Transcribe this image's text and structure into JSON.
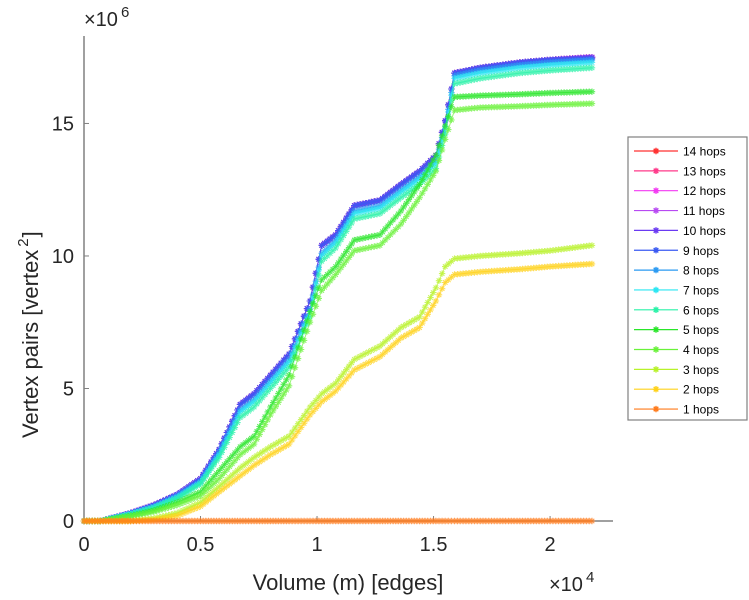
{
  "chart_data": {
    "type": "line",
    "title": "",
    "xlabel": "Volume (m) [edges]",
    "ylabel": "Vertex pairs [vertex",
    "ylabel_superscript": "2",
    "ylabel_close": "]",
    "x_multiplier": "×10",
    "x_multiplier_exp": "4",
    "y_multiplier": "×10",
    "y_multiplier_exp": "6",
    "xlim": [
      0,
      2.27
    ],
    "ylim": [
      0,
      18.3
    ],
    "x_ticks": [
      0,
      0.5,
      1,
      1.5,
      2
    ],
    "x_tick_labels": [
      "0",
      "0.5",
      "1",
      "1.5",
      "2"
    ],
    "y_ticks": [
      0,
      5,
      10,
      15
    ],
    "y_tick_labels": [
      "0",
      "5",
      "10",
      "15"
    ],
    "grid": false,
    "legend_position": "right-outside",
    "x": [
      0,
      0.07,
      0.2,
      0.3,
      0.4,
      0.5,
      0.58,
      0.67,
      0.73,
      0.8,
      0.88,
      0.97,
      1.02,
      1.08,
      1.16,
      1.27,
      1.36,
      1.44,
      1.51,
      1.55,
      1.59,
      1.7,
      1.87,
      2.0,
      2.18
    ],
    "series": [
      {
        "name": "14 hops",
        "color": "#ff3030",
        "values": [
          0,
          0,
          0.3,
          0.6,
          1.0,
          1.6,
          2.7,
          4.4,
          4.8,
          5.5,
          6.3,
          8.3,
          10.4,
          10.8,
          11.9,
          12.1,
          12.7,
          13.2,
          13.8,
          15.1,
          16.9,
          17.1,
          17.3,
          17.4,
          17.5
        ]
      },
      {
        "name": "13 hops",
        "color": "#ff3a8a",
        "values": [
          0,
          0,
          0.3,
          0.6,
          1.0,
          1.6,
          2.7,
          4.4,
          4.8,
          5.5,
          6.3,
          8.3,
          10.4,
          10.8,
          11.9,
          12.1,
          12.7,
          13.2,
          13.8,
          15.1,
          16.9,
          17.1,
          17.3,
          17.4,
          17.5
        ]
      },
      {
        "name": "12 hops",
        "color": "#f23af2",
        "values": [
          0,
          0,
          0.3,
          0.6,
          1.0,
          1.6,
          2.7,
          4.4,
          4.8,
          5.5,
          6.3,
          8.3,
          10.4,
          10.8,
          11.9,
          12.1,
          12.7,
          13.2,
          13.8,
          15.1,
          16.9,
          17.1,
          17.3,
          17.4,
          17.5
        ]
      },
      {
        "name": "11 hops",
        "color": "#b84af2",
        "values": [
          0,
          0,
          0.3,
          0.6,
          1.0,
          1.6,
          2.7,
          4.4,
          4.8,
          5.5,
          6.3,
          8.3,
          10.4,
          10.8,
          11.9,
          12.1,
          12.7,
          13.2,
          13.8,
          15.1,
          16.9,
          17.1,
          17.3,
          17.4,
          17.5
        ]
      },
      {
        "name": "10 hops",
        "color": "#6a3af2",
        "values": [
          0,
          0,
          0.3,
          0.6,
          1.0,
          1.6,
          2.7,
          4.4,
          4.8,
          5.5,
          6.3,
          8.3,
          10.4,
          10.8,
          11.9,
          12.1,
          12.7,
          13.2,
          13.8,
          15.1,
          16.9,
          17.1,
          17.3,
          17.4,
          17.5
        ]
      },
      {
        "name": "9 hops",
        "color": "#3a5af2",
        "values": [
          0,
          0,
          0.3,
          0.6,
          1.0,
          1.6,
          2.7,
          4.4,
          4.8,
          5.5,
          6.3,
          8.3,
          10.4,
          10.8,
          11.9,
          12.1,
          12.7,
          13.2,
          13.8,
          15.1,
          16.9,
          17.1,
          17.3,
          17.4,
          17.45
        ]
      },
      {
        "name": "8 hops",
        "color": "#2a9af2",
        "values": [
          0,
          0,
          0.28,
          0.55,
          0.95,
          1.5,
          2.6,
          4.2,
          4.6,
          5.3,
          6.1,
          8.0,
          10.1,
          10.6,
          11.7,
          11.9,
          12.5,
          13.0,
          13.6,
          14.9,
          16.8,
          17.0,
          17.2,
          17.3,
          17.4
        ]
      },
      {
        "name": "7 hops",
        "color": "#2ae6f2",
        "values": [
          0,
          0,
          0.27,
          0.52,
          0.9,
          1.45,
          2.5,
          4.1,
          4.5,
          5.2,
          6.0,
          7.9,
          10.0,
          10.5,
          11.6,
          11.8,
          12.4,
          12.9,
          13.5,
          14.8,
          16.7,
          16.9,
          17.1,
          17.2,
          17.3
        ]
      },
      {
        "name": "6 hops",
        "color": "#2af2a8",
        "values": [
          0,
          0,
          0.25,
          0.5,
          0.85,
          1.4,
          2.4,
          3.9,
          4.3,
          5.0,
          5.8,
          7.7,
          9.8,
          10.3,
          11.4,
          11.6,
          12.2,
          12.7,
          13.3,
          14.6,
          16.5,
          16.7,
          16.9,
          17.0,
          17.1
        ]
      },
      {
        "name": "5 hops",
        "color": "#2ae62a",
        "values": [
          0,
          0,
          0.2,
          0.4,
          0.7,
          1.1,
          1.9,
          2.8,
          3.2,
          4.3,
          5.5,
          7.9,
          9.1,
          9.6,
          10.6,
          10.8,
          11.7,
          12.7,
          13.8,
          14.9,
          16.0,
          16.05,
          16.1,
          16.15,
          16.2
        ]
      },
      {
        "name": "4 hops",
        "color": "#6af23a",
        "values": [
          0,
          0,
          0.18,
          0.35,
          0.6,
          0.95,
          1.6,
          2.5,
          2.9,
          4.0,
          5.1,
          7.5,
          8.7,
          9.3,
          10.2,
          10.4,
          11.2,
          12.2,
          13.2,
          14.4,
          15.5,
          15.6,
          15.65,
          15.7,
          15.75
        ]
      },
      {
        "name": "3 hops",
        "color": "#b8f22a",
        "values": [
          0,
          0,
          0,
          0.1,
          0.3,
          0.7,
          1.3,
          2.0,
          2.4,
          2.8,
          3.2,
          4.3,
          4.8,
          5.2,
          6.1,
          6.6,
          7.3,
          7.7,
          8.8,
          9.6,
          9.9,
          10.0,
          10.1,
          10.2,
          10.4
        ]
      },
      {
        "name": "2 hops",
        "color": "#ffd21a",
        "values": [
          0,
          0,
          0,
          0.05,
          0.2,
          0.55,
          1.1,
          1.7,
          2.1,
          2.5,
          2.9,
          4.0,
          4.5,
          4.9,
          5.7,
          6.2,
          6.9,
          7.3,
          8.3,
          9.0,
          9.3,
          9.4,
          9.5,
          9.6,
          9.7
        ]
      },
      {
        "name": "1 hops",
        "color": "#ff7a1a",
        "values": [
          0,
          0,
          0,
          0,
          0,
          0,
          0,
          0,
          0,
          0,
          0,
          0,
          0,
          0,
          0,
          0,
          0,
          0,
          0,
          0,
          0,
          0,
          0,
          0,
          0
        ]
      }
    ]
  }
}
